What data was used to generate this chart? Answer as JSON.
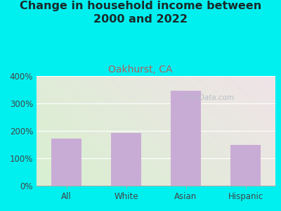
{
  "title": "Change in household income between\n2000 and 2022",
  "subtitle": "Oakhurst, CA",
  "categories": [
    "All",
    "White",
    "Asian",
    "Hispanic"
  ],
  "values": [
    172,
    193,
    347,
    148
  ],
  "bar_color": "#c9acd6",
  "title_fontsize": 11.5,
  "title_color": "#1a2a2a",
  "subtitle_fontsize": 10,
  "subtitle_color": "#b06060",
  "background_color": "#00f0f0",
  "plot_bg_color_topleft": "#d8f0d0",
  "plot_bg_color_bottomright": "#e8e8e0",
  "ylim": [
    0,
    400
  ],
  "yticks": [
    0,
    100,
    200,
    300,
    400
  ],
  "watermark": "City-Data.com",
  "watermark_color": "#b0b8c0",
  "grid_color": "#ffffff"
}
